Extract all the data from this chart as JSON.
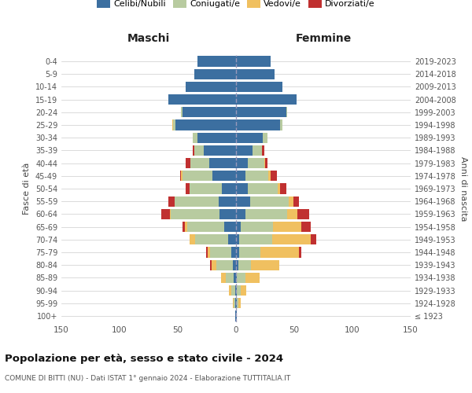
{
  "age_groups": [
    "100+",
    "95-99",
    "90-94",
    "85-89",
    "80-84",
    "75-79",
    "70-74",
    "65-69",
    "60-64",
    "55-59",
    "50-54",
    "45-49",
    "40-44",
    "35-39",
    "30-34",
    "25-29",
    "20-24",
    "15-19",
    "10-14",
    "5-9",
    "0-4"
  ],
  "birth_years": [
    "≤ 1923",
    "1924-1928",
    "1929-1933",
    "1934-1938",
    "1939-1943",
    "1944-1948",
    "1949-1953",
    "1954-1958",
    "1959-1963",
    "1964-1968",
    "1969-1973",
    "1974-1978",
    "1979-1983",
    "1984-1988",
    "1989-1993",
    "1994-1998",
    "1999-2003",
    "2004-2008",
    "2009-2013",
    "2014-2018",
    "2019-2023"
  ],
  "maschi": {
    "celibi": [
      1,
      1,
      1,
      2,
      3,
      4,
      7,
      10,
      14,
      15,
      12,
      20,
      23,
      28,
      33,
      52,
      46,
      58,
      43,
      36,
      33
    ],
    "coniugati": [
      0,
      1,
      3,
      7,
      14,
      18,
      28,
      32,
      42,
      38,
      28,
      26,
      16,
      8,
      4,
      2,
      1,
      0,
      0,
      0,
      0
    ],
    "vedovi": [
      0,
      1,
      2,
      4,
      4,
      2,
      5,
      2,
      1,
      0,
      0,
      1,
      0,
      0,
      0,
      1,
      0,
      0,
      0,
      0,
      0
    ],
    "divorziati": [
      0,
      0,
      0,
      0,
      1,
      2,
      0,
      2,
      7,
      5,
      3,
      1,
      4,
      1,
      0,
      0,
      0,
      0,
      0,
      0,
      0
    ]
  },
  "femmine": {
    "nubili": [
      1,
      1,
      1,
      1,
      2,
      3,
      3,
      4,
      8,
      12,
      10,
      8,
      10,
      14,
      23,
      38,
      43,
      52,
      40,
      33,
      30
    ],
    "coniugate": [
      0,
      1,
      3,
      7,
      11,
      18,
      28,
      28,
      36,
      33,
      26,
      20,
      14,
      8,
      4,
      2,
      1,
      0,
      0,
      0,
      0
    ],
    "vedove": [
      0,
      2,
      5,
      12,
      24,
      33,
      33,
      24,
      9,
      4,
      2,
      2,
      1,
      0,
      0,
      0,
      0,
      0,
      0,
      0,
      0
    ],
    "divorziate": [
      0,
      0,
      0,
      0,
      0,
      2,
      5,
      8,
      10,
      5,
      5,
      5,
      2,
      2,
      0,
      0,
      0,
      0,
      0,
      0,
      0
    ]
  },
  "colors": {
    "celibi": "#3c6fa0",
    "coniugati": "#b8cba0",
    "vedovi": "#f0c060",
    "divorziati": "#c03030"
  },
  "bg_color": "#ffffff",
  "grid_color": "#cccccc",
  "xlim": 150,
  "title": "Popolazione per età, sesso e stato civile - 2024",
  "subtitle": "COMUNE DI BITTI (NU) - Dati ISTAT 1° gennaio 2024 - Elaborazione TUTTITALIA.IT",
  "ylabel_left": "Fasce di età",
  "ylabel_right": "Anni di nascita",
  "xlabel_left": "Maschi",
  "xlabel_right": "Femmine"
}
